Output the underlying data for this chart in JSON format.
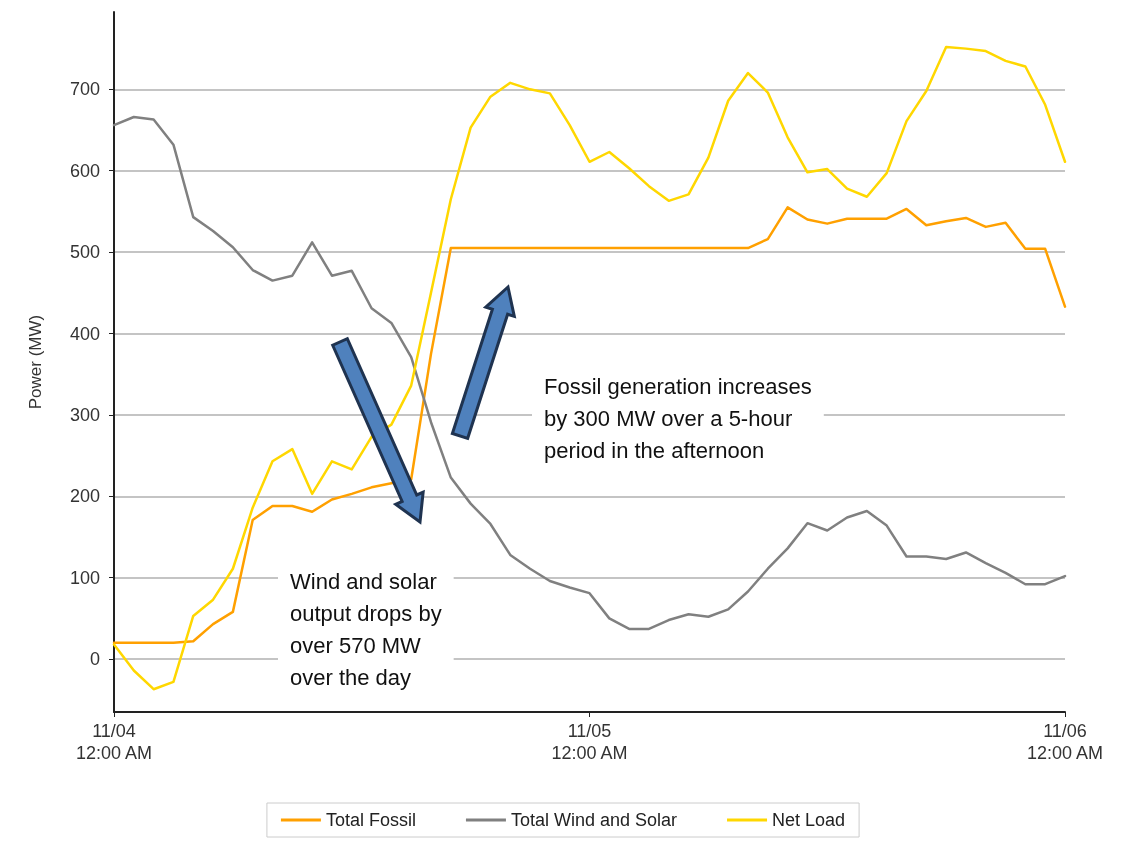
{
  "chart_data": {
    "type": "line",
    "ylabel": "Power (MW)",
    "x": [
      "--11-04T00:00",
      "--11-04T01:00",
      "--11-04T02:00",
      "--11-04T03:00",
      "--11-04T04:00",
      "--11-04T05:00",
      "--11-04T06:00",
      "--11-04T07:00",
      "--11-04T08:00",
      "--11-04T09:00",
      "--11-04T10:00",
      "--11-04T11:00",
      "--11-04T12:00",
      "--11-04T13:00",
      "--11-04T14:00",
      "--11-04T15:00",
      "--11-04T16:00",
      "--11-04T17:00",
      "--11-04T18:00",
      "--11-04T19:00",
      "--11-04T20:00",
      "--11-04T21:00",
      "--11-04T22:00",
      "--11-04T23:00",
      "--11-05T00:00",
      "--11-05T01:00",
      "--11-05T02:00",
      "--11-05T03:00",
      "--11-05T04:00",
      "--11-05T05:00",
      "--11-05T06:00",
      "--11-05T07:00",
      "--11-05T08:00",
      "--11-05T09:00",
      "--11-05T10:00",
      "--11-05T11:00",
      "--11-05T12:00",
      "--11-05T13:00",
      "--11-05T14:00",
      "--11-05T15:00",
      "--11-05T16:00",
      "--11-05T17:00",
      "--11-05T18:00",
      "--11-05T19:00",
      "--11-05T20:00",
      "--11-05T21:00",
      "--11-05T22:00",
      "--11-05T23:00",
      "--11-06T00:00"
    ],
    "series": [
      {
        "name": "Total Fossil",
        "color": "#ffa000",
        "values": [
          20,
          20,
          20,
          20,
          22,
          43,
          58,
          171,
          188,
          188,
          181,
          196,
          203,
          211,
          216,
          221,
          375,
          505,
          505,
          505,
          505,
          505,
          505,
          505,
          505,
          505,
          505,
          505,
          505,
          505,
          505,
          505,
          505,
          516,
          555,
          540,
          535,
          541,
          541,
          541,
          553,
          533,
          538,
          542,
          531,
          536,
          504,
          504,
          433
        ]
      },
      {
        "name": "Total Wind and Solar",
        "color": "#808080",
        "values": [
          656,
          666,
          663,
          632,
          543,
          526,
          506,
          478,
          465,
          471,
          512,
          471,
          477,
          431,
          413,
          371,
          291,
          223,
          191,
          166,
          128,
          111,
          96,
          88,
          81,
          50,
          37,
          37,
          48,
          55,
          52,
          61,
          83,
          111,
          136,
          167,
          158,
          174,
          182,
          164,
          126,
          126,
          123,
          131,
          118,
          106,
          92,
          92,
          102
        ]
      },
      {
        "name": "Net Load",
        "color": "#ffd700",
        "values": [
          18,
          -14,
          -37,
          -28,
          53,
          73,
          111,
          186,
          243,
          258,
          203,
          243,
          233,
          273,
          288,
          336,
          450,
          565,
          653,
          691,
          708,
          700,
          695,
          656,
          611,
          623,
          603,
          581,
          563,
          571,
          616,
          686,
          720,
          696,
          641,
          598,
          602,
          578,
          568,
          597,
          661,
          698,
          752,
          750,
          747,
          735,
          728,
          681,
          611
        ]
      }
    ],
    "xlim": [
      "--11-04T00:00",
      "--11-06T00:00"
    ],
    "xticks": [
      {
        "value": "--11-04T00:00",
        "label": "11/04\n12:00 AM"
      },
      {
        "value": "--11-05T00:00",
        "label": "11/05\n12:00 AM"
      },
      {
        "value": "--11-06T00:00",
        "label": "11/06\n12:00 AM"
      }
    ],
    "ylim": [
      -65,
      795
    ],
    "yticks": [
      0,
      100,
      200,
      300,
      400,
      500,
      600,
      700
    ],
    "grid": "y",
    "legend": "bottom",
    "marker": "none",
    "line_style": "solid",
    "annotations": [
      "Wind and solar\noutput drops by\nover 570 MW\nover the day",
      "Fossil generation increases\nby 300 MW over a 5-hour\nperiod in the afternoon"
    ]
  }
}
